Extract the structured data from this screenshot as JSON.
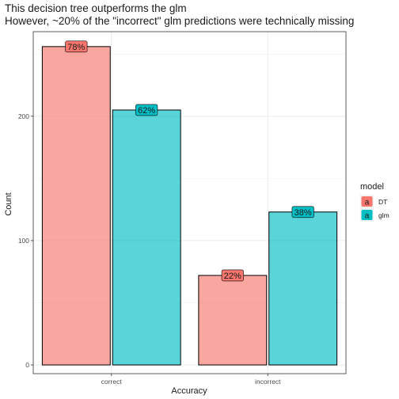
{
  "chart_data": {
    "type": "bar",
    "title": "This decision tree outperforms the glm",
    "subtitle": "However, ~20% of the \"incorrect\" glm predictions were technically missing",
    "xlabel": "Accuracy",
    "ylabel": "Count",
    "categories": [
      "correct",
      "incorrect"
    ],
    "ylim": [
      -7,
      268
    ],
    "yticks": [
      0,
      100,
      200
    ],
    "grid": true,
    "legend": {
      "title": "model",
      "position": "right"
    },
    "series": [
      {
        "name": "DT",
        "color": "#F8766D",
        "values": [
          256,
          72
        ],
        "labels": [
          "78%",
          "22%"
        ]
      },
      {
        "name": "glm",
        "color": "#00BFC4",
        "values": [
          205,
          123
        ],
        "labels": [
          "62%",
          "38%"
        ]
      }
    ],
    "key_glyph_text": "a"
  }
}
